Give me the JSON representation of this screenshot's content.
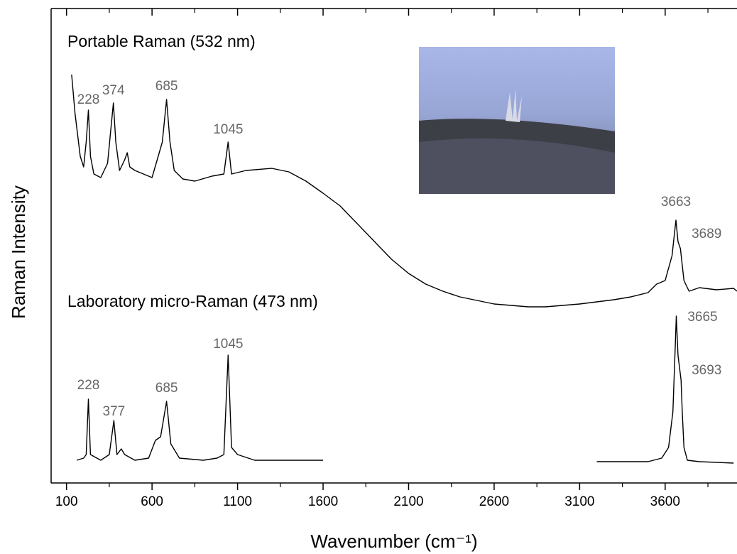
{
  "chart_data": {
    "type": "line",
    "x_label": "Wavenumber (cm⁻¹)",
    "y_label": "Raman Intensity",
    "xlim": [
      10,
      4020
    ],
    "ylim": [
      0,
      668
    ],
    "xticks": [
      100,
      600,
      1100,
      1600,
      2100,
      2600,
      3100,
      3600
    ],
    "xminorticks": [
      350,
      850,
      1350,
      1850,
      2350,
      2850,
      3350,
      3850
    ],
    "series": [
      {
        "name": "Portable Raman (532 nm)",
        "color": "#000000",
        "x": [
          130,
          150,
          180,
          200,
          215,
          228,
          240,
          260,
          300,
          340,
          360,
          374,
          388,
          410,
          440,
          455,
          470,
          500,
          550,
          600,
          630,
          660,
          685,
          705,
          730,
          780,
          850,
          950,
          1020,
          1045,
          1065,
          1150,
          1300,
          1400,
          1500,
          1600,
          1700,
          1800,
          1900,
          2000,
          2100,
          2200,
          2300,
          2400,
          2500,
          2600,
          2700,
          2800,
          2900,
          3000,
          3100,
          3200,
          3300,
          3400,
          3500,
          3550,
          3600,
          3640,
          3663,
          3675,
          3689,
          3710,
          3740,
          3800,
          3900,
          4000,
          4020
        ],
        "values": [
          575,
          520,
          460,
          445,
          480,
          525,
          460,
          435,
          430,
          450,
          500,
          535,
          480,
          440,
          455,
          465,
          445,
          440,
          435,
          430,
          455,
          480,
          540,
          480,
          440,
          428,
          425,
          432,
          435,
          480,
          435,
          440,
          443,
          438,
          425,
          408,
          390,
          365,
          340,
          315,
          295,
          280,
          270,
          262,
          257,
          252,
          250,
          248,
          248,
          250,
          252,
          255,
          258,
          262,
          268,
          280,
          285,
          320,
          370,
          340,
          330,
          285,
          270,
          275,
          272,
          274,
          270
        ],
        "peak_labels": [
          228,
          374,
          685,
          1045,
          3663,
          3689
        ]
      },
      {
        "name": "Laboratory micro-Raman (473 nm)",
        "color": "#000000",
        "x": [
          160,
          200,
          215,
          228,
          240,
          300,
          350,
          377,
          395,
          420,
          440,
          500,
          580,
          620,
          650,
          685,
          710,
          760,
          900,
          980,
          1020,
          1045,
          1065,
          1100,
          1200,
          1400,
          1600,
          2400,
          3200,
          3500,
          3580,
          3620,
          3645,
          3660,
          3665,
          3675,
          3693,
          3700,
          3710,
          3730,
          3800,
          4000
        ],
        "values": [
          32,
          35,
          40,
          118,
          40,
          32,
          40,
          88,
          40,
          48,
          40,
          32,
          35,
          60,
          65,
          115,
          55,
          35,
          32,
          35,
          40,
          180,
          50,
          40,
          32,
          32,
          32,
          null,
          30,
          30,
          35,
          50,
          100,
          200,
          235,
          180,
          145,
          100,
          50,
          32,
          30,
          28
        ],
        "peak_labels": [
          228,
          377,
          685,
          1045,
          3665,
          3693
        ]
      }
    ]
  }
}
